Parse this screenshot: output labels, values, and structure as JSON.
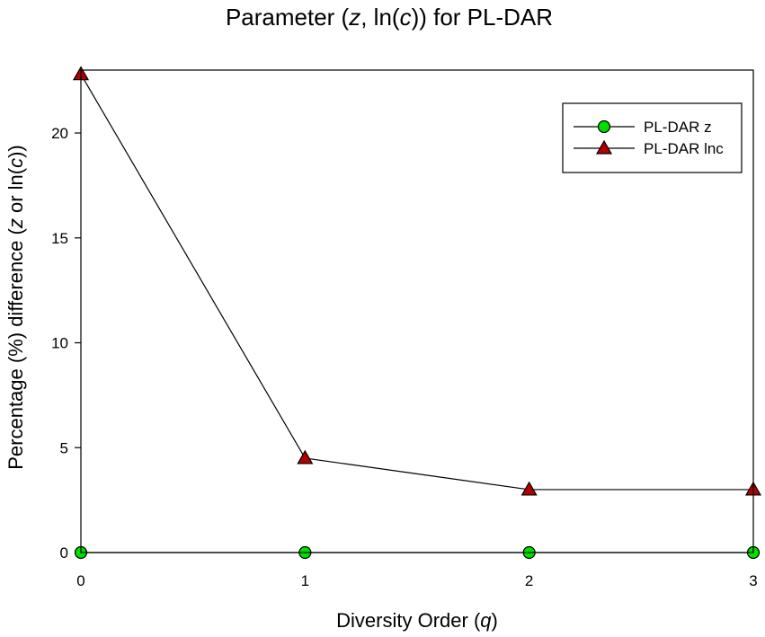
{
  "chart_data": {
    "type": "line",
    "title_parts": [
      {
        "text": "Parameter (",
        "italic": false
      },
      {
        "text": "z",
        "italic": true
      },
      {
        "text": ", ln(",
        "italic": false
      },
      {
        "text": "c",
        "italic": true
      },
      {
        "text": ")) for PL-DAR",
        "italic": false
      }
    ],
    "xlabel_parts": [
      {
        "text": "Diversity Order (",
        "italic": false
      },
      {
        "text": "q",
        "italic": true
      },
      {
        "text": ")",
        "italic": false
      }
    ],
    "ylabel_parts": [
      {
        "text": "Percentage (%) difference (",
        "italic": false
      },
      {
        "text": "z",
        "italic": true
      },
      {
        "text": " or ln(",
        "italic": false
      },
      {
        "text": "c",
        "italic": true
      },
      {
        "text": "))",
        "italic": false
      }
    ],
    "x": [
      0,
      1,
      2,
      3
    ],
    "xlim": [
      0,
      3
    ],
    "ylim": [
      0,
      23
    ],
    "xticks": [
      0,
      1,
      2,
      3
    ],
    "yticks": [
      0,
      5,
      10,
      15,
      20
    ],
    "grid": false,
    "legend_position": "top-right",
    "series": [
      {
        "name": "PL-DAR z",
        "values": [
          0,
          0,
          0,
          0
        ],
        "marker": "circle",
        "color": "#00e000"
      },
      {
        "name": "PL-DAR lnc",
        "values": [
          22.8,
          4.5,
          3.0,
          3.0
        ],
        "marker": "triangle",
        "color": "#b00000"
      }
    ]
  }
}
